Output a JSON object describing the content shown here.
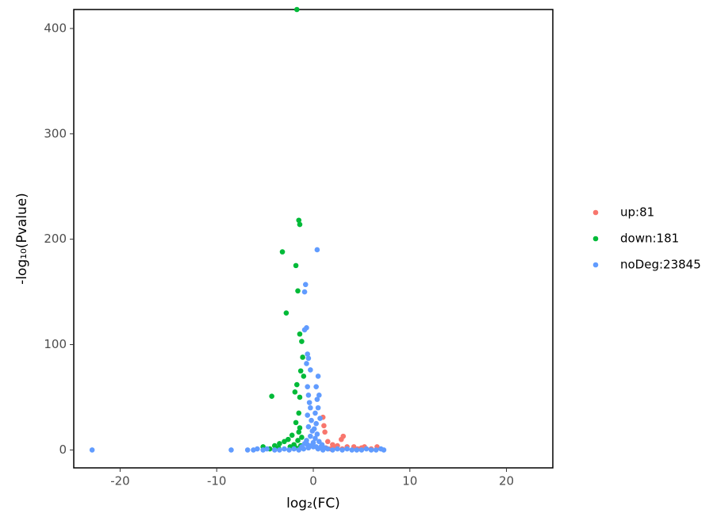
{
  "chart_data": {
    "type": "scatter",
    "x_label": "log₂(FC)",
    "y_label": "-log₁₀(Pvalue)",
    "xlim": [
      -24.8,
      24.8
    ],
    "ylim": [
      -17,
      418
    ],
    "xticks": [
      -20,
      -10,
      0,
      10,
      20
    ],
    "yticks": [
      0,
      100,
      200,
      300,
      400
    ],
    "grid": false,
    "legend": "right",
    "series": [
      {
        "name": "up:81",
        "color": "#F8766D",
        "x": [
          1.0,
          1.1,
          1.2,
          3.1,
          2.9,
          1.5,
          2.0,
          2.5,
          3.5,
          4.2,
          5.0,
          5.3,
          6.6,
          1.3,
          1.8,
          4.6,
          3.0,
          2.3,
          6.0
        ],
        "values": [
          31,
          23,
          17,
          13,
          10,
          8,
          5,
          4,
          3,
          3,
          2,
          3,
          3,
          2,
          1,
          1,
          1,
          2,
          1
        ]
      },
      {
        "name": "down:181",
        "color": "#00BA38",
        "x": [
          -1.7,
          -1.5,
          -1.4,
          -3.2,
          -1.8,
          -1.6,
          -2.8,
          -1.4,
          -1.2,
          -1.1,
          -1.3,
          -1.0,
          -1.7,
          -4.3,
          -1.9,
          -1.4,
          -1.5,
          -1.8,
          -1.4,
          -2.2,
          -2.6,
          -3.0,
          -3.5,
          -4.0,
          -5.2,
          -2.0,
          -1.6,
          -1.2,
          -1.5,
          -3.6,
          -4.5,
          -2.4,
          -1.8,
          -1.3
        ],
        "values": [
          418,
          218,
          214,
          188,
          175,
          151,
          130,
          110,
          103,
          88,
          75,
          70,
          62,
          51,
          55,
          50,
          35,
          26,
          21,
          14,
          10,
          8,
          6,
          4,
          3,
          5,
          9,
          12,
          17,
          2,
          1,
          3,
          2,
          4
        ]
      },
      {
        "name": "noDeg:23845",
        "color": "#619CFF",
        "x": [
          -22.9,
          -8.5,
          -6.8,
          -6.2,
          -5.8,
          -5.2,
          -4.8,
          -4.0,
          -3.5,
          -3.0,
          -2.5,
          -2.0,
          -1.5,
          -1.0,
          -0.5,
          0,
          0.5,
          1.0,
          1.5,
          2.0,
          2.5,
          3.0,
          3.5,
          4.0,
          4.5,
          5.0,
          5.5,
          6.0,
          6.5,
          7.0,
          7.3,
          0.4,
          -0.8,
          -0.9,
          -0.7,
          -0.9,
          -0.6,
          -0.5,
          -0.7,
          -0.3,
          0.5,
          -0.6,
          0.3,
          -0.5,
          0.6,
          0.4,
          -0.4,
          0.5,
          -0.3,
          0.2,
          -0.6,
          0.7,
          -0.2,
          0.3,
          -0.5,
          0.1,
          -0.1,
          0.4,
          -0.3,
          0.2,
          -0.7,
          0.6,
          0,
          -0.9,
          0.9,
          -0.2,
          0.3,
          -1.2,
          1.2,
          -0.6,
          0.8
        ],
        "values": [
          0,
          0,
          0,
          0,
          1,
          0,
          1,
          0,
          0,
          1,
          0,
          1,
          0,
          1,
          2,
          3,
          1,
          0,
          1,
          0,
          1,
          0,
          1,
          0,
          0,
          0,
          1,
          0,
          0,
          1,
          0,
          190,
          157,
          150,
          116,
          114,
          91,
          87,
          82,
          76,
          70,
          60,
          60,
          52,
          52,
          48,
          45,
          40,
          40,
          35,
          33,
          30,
          28,
          25,
          22,
          20,
          18,
          15,
          13,
          11,
          9,
          8,
          7,
          6,
          5,
          4,
          3,
          3,
          2,
          5,
          3
        ]
      }
    ]
  }
}
